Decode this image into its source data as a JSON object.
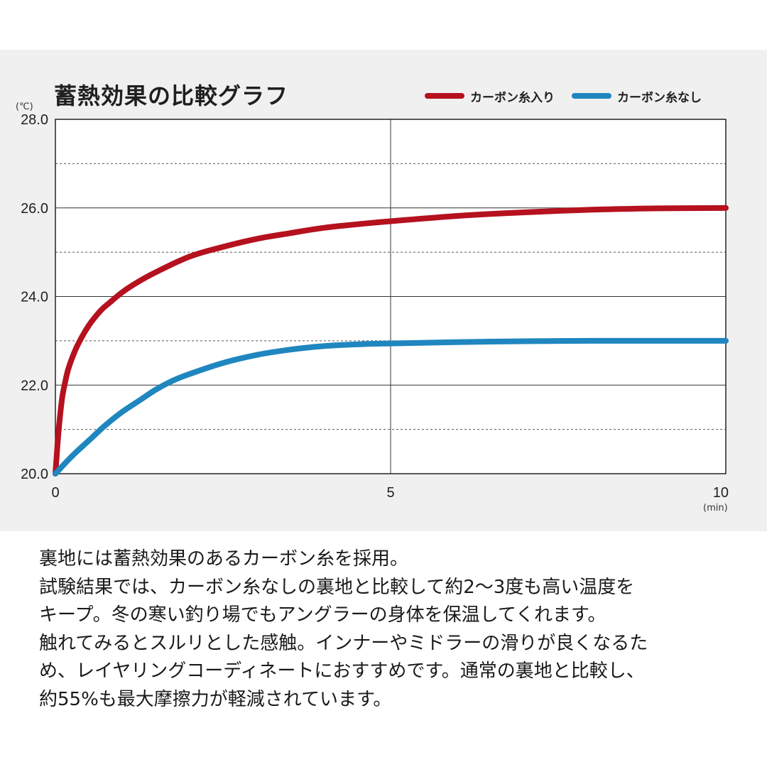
{
  "chart_data": {
    "type": "line",
    "title": "蓄熱効果の比較グラフ",
    "y_unit": "(℃)",
    "x_unit": "(min)",
    "xlim": [
      0,
      10
    ],
    "ylim": [
      20.0,
      28.0
    ],
    "x_ticks": [
      0,
      5,
      10
    ],
    "x_tick_labels": [
      "0",
      "5",
      "10"
    ],
    "y_ticks": [
      20.0,
      22.0,
      24.0,
      26.0,
      28.0
    ],
    "y_tick_labels": [
      "20.0",
      "22.0",
      "24.0",
      "26.0",
      "28.0"
    ],
    "grid": true,
    "legend_position": "top-right",
    "series": [
      {
        "name": "カーボン糸入り",
        "color": "#b5111e",
        "x": [
          0,
          0.05,
          0.1,
          0.15,
          0.2,
          0.3,
          0.4,
          0.5,
          0.6,
          0.7,
          0.8,
          1.0,
          1.2,
          1.5,
          2.0,
          2.5,
          3.0,
          3.5,
          4.0,
          4.5,
          5.0,
          6.0,
          7.0,
          8.0,
          9.0,
          10.0
        ],
        "y": [
          20.0,
          21.0,
          21.7,
          22.1,
          22.4,
          22.8,
          23.1,
          23.35,
          23.55,
          23.72,
          23.85,
          24.1,
          24.3,
          24.55,
          24.9,
          25.12,
          25.3,
          25.43,
          25.55,
          25.63,
          25.7,
          25.82,
          25.9,
          25.96,
          25.99,
          26.0
        ]
      },
      {
        "name": "カーボン糸なし",
        "color": "#1f86bf",
        "x": [
          0,
          0.25,
          0.5,
          0.75,
          1.0,
          1.25,
          1.5,
          1.75,
          2.0,
          2.5,
          3.0,
          3.5,
          4.0,
          4.5,
          5.0,
          6.0,
          7.0,
          8.0,
          9.0,
          10.0
        ],
        "y": [
          20.0,
          20.4,
          20.75,
          21.1,
          21.4,
          21.65,
          21.9,
          22.1,
          22.25,
          22.5,
          22.68,
          22.8,
          22.88,
          22.92,
          22.94,
          22.97,
          22.99,
          23.0,
          23.0,
          23.0
        ]
      }
    ]
  },
  "description": [
    "裏地には蓄熱効果のあるカーボン糸を採用。",
    "試験結果では、カーボン糸なしの裏地と比較して約2〜3度も高い温度を",
    "キープ。冬の寒い釣り場でもアングラーの身体を保温してくれます。",
    "触れてみるとスルリとした感触。インナーやミドラーの滑りが良くなるた",
    "め、レイヤリングコーディネートにおすすめです。通常の裏地と比較し、",
    "約55%も最大摩擦力が軽減されています。"
  ]
}
